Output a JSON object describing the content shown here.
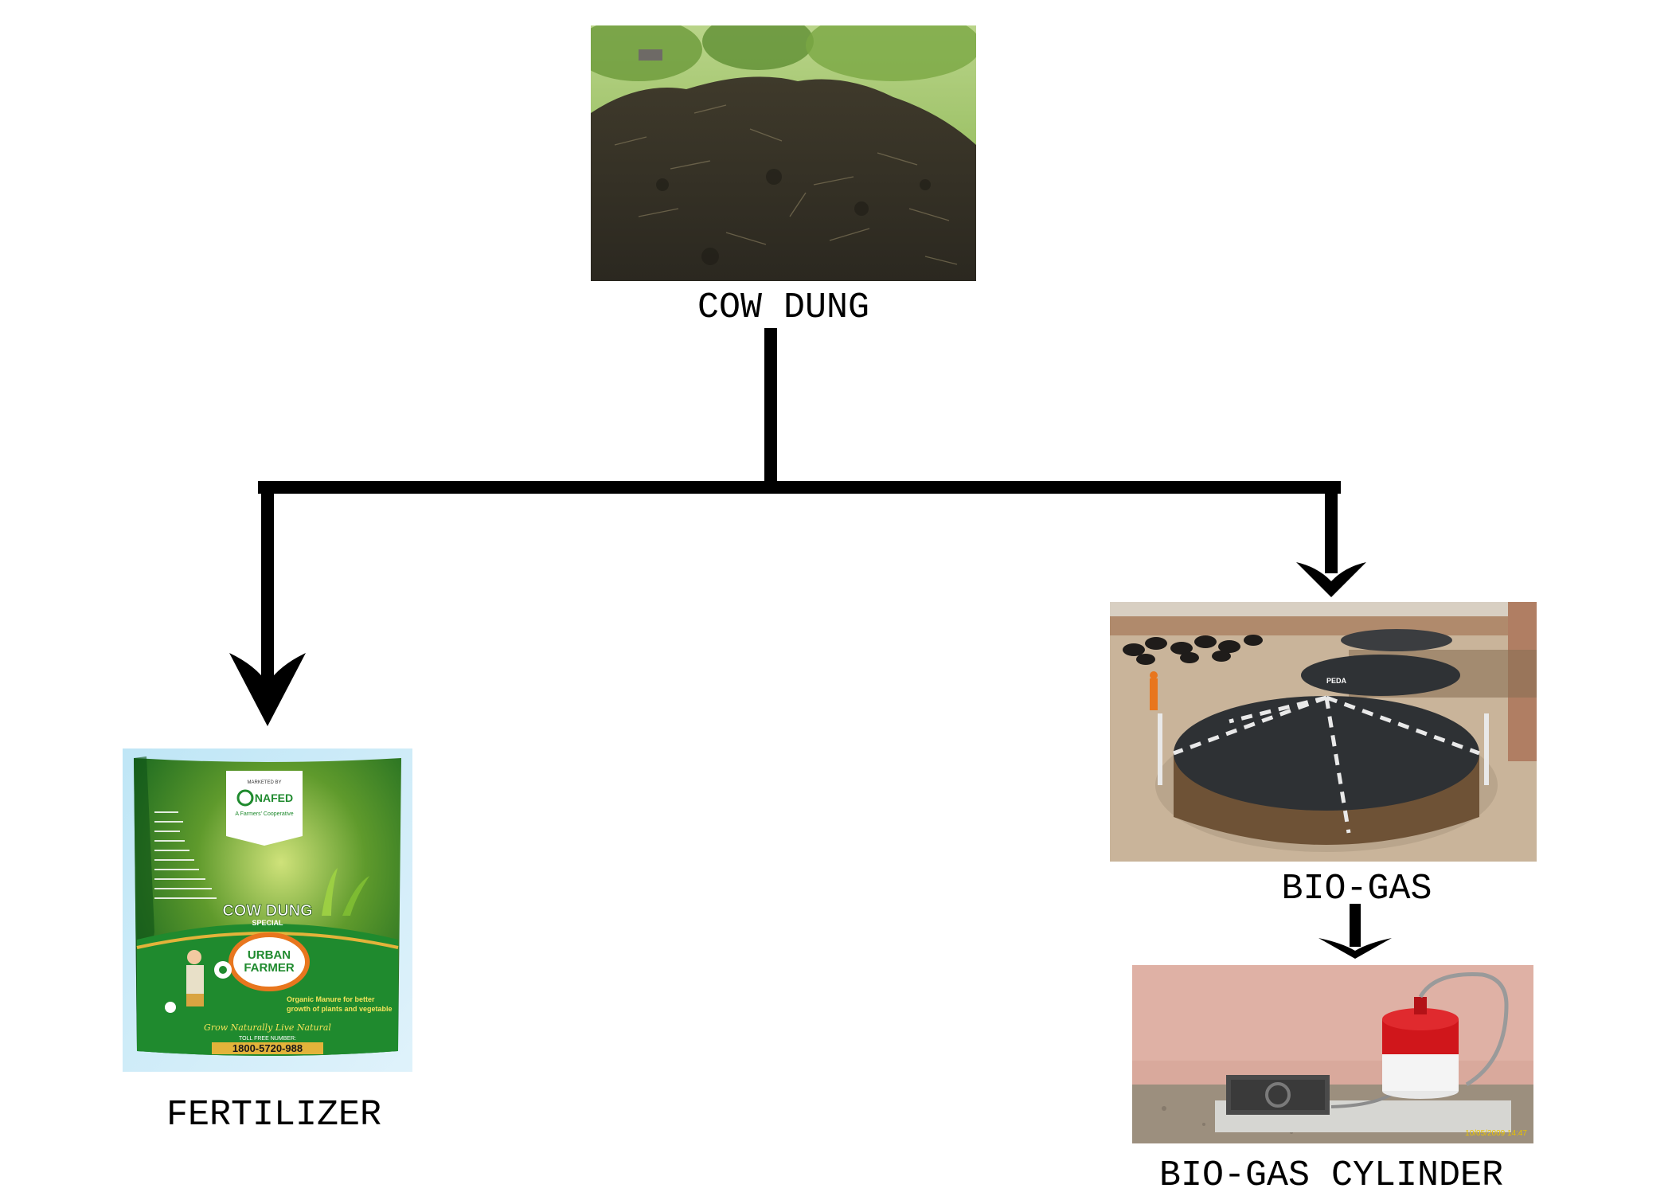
{
  "nodes": {
    "cow_dung": {
      "label": "COW DUNG"
    },
    "fertilizer": {
      "label": "FERTILIZER"
    },
    "bio_gas": {
      "label": "BIO-GAS"
    },
    "bio_gas_cylinder": {
      "label": "BIO-GAS CYLINDER"
    }
  },
  "fertilizer_bag": {
    "marketed_by": "MARKETED BY",
    "brand": "NAFED",
    "brand_tagline": "A Farmers' Cooperative",
    "product": "COW DUNG",
    "product_sub": "SPECIAL",
    "badge_line1": "URBAN",
    "badge_line2": "FARMER",
    "desc_line1": "Organic Manure for better",
    "desc_line2": "growth of plants and vegetable",
    "slogan": "Grow Naturally  Live Natural",
    "toll_free": "TOLL FREE NUMBER:",
    "phone": "1800-5720-988"
  },
  "biogas_plant": {
    "sign": "PEDA"
  },
  "cylinder_photo": {
    "timestamp": "10/05/2009 14:47"
  },
  "colors": {
    "line": "#000000",
    "bag_green": "#1f8a2e",
    "badge_orange": "#e8761e",
    "cylinder_red": "#d0161b"
  },
  "icons": {
    "arrow": "arrow-down-icon"
  }
}
